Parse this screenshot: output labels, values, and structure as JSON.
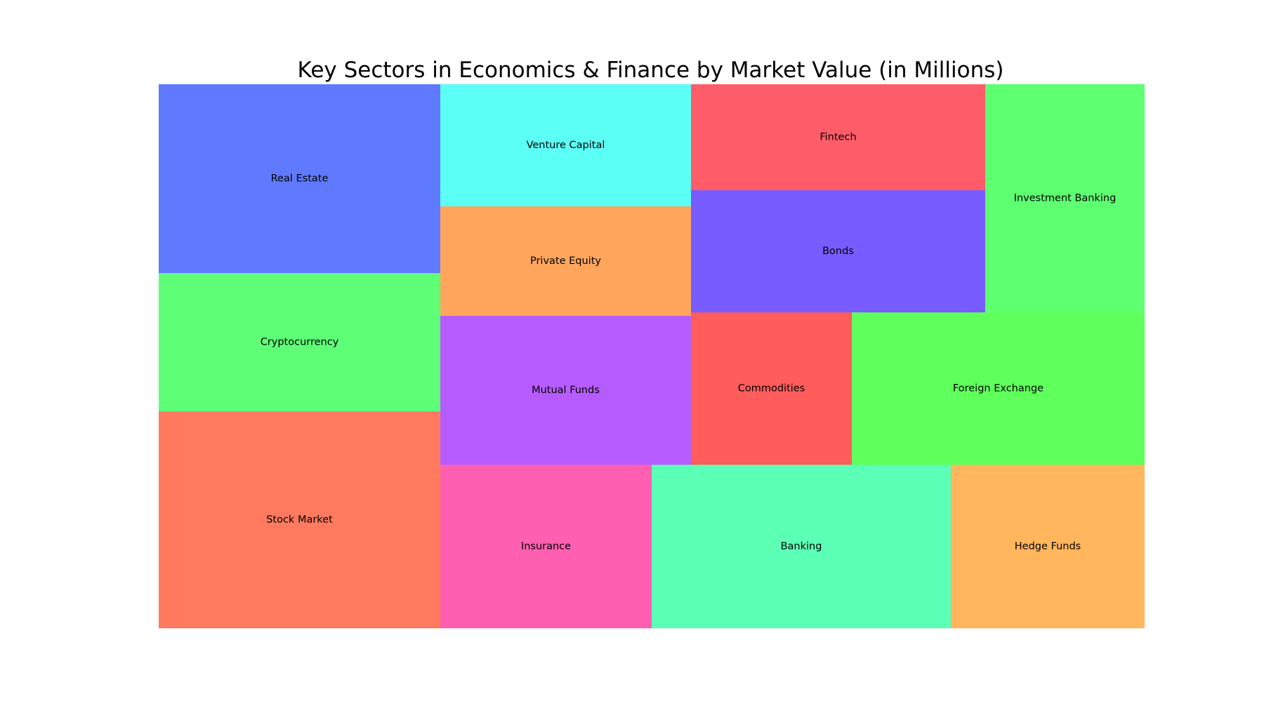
{
  "chart_data": {
    "type": "treemap",
    "title": "Key Sectors in Economics & Finance by Market Value (in Millions)",
    "items": [
      {
        "label": "Real Estate",
        "color": "#5F7AFF"
      },
      {
        "label": "Cryptocurrency",
        "color": "#5EFF77"
      },
      {
        "label": "Stock Market",
        "color": "#FF7A5F"
      },
      {
        "label": "Venture Capital",
        "color": "#5CFFF6"
      },
      {
        "label": "Private Equity",
        "color": "#FFA65C"
      },
      {
        "label": "Mutual Funds",
        "color": "#B65CFF"
      },
      {
        "label": "Insurance",
        "color": "#FF5FB1"
      },
      {
        "label": "Banking",
        "color": "#5CFFB6"
      },
      {
        "label": "Hedge Funds",
        "color": "#FFB65C"
      },
      {
        "label": "Fintech",
        "color": "#FF5C6A"
      },
      {
        "label": "Bonds",
        "color": "#785CFF"
      },
      {
        "label": "Investment Banking",
        "color": "#5EFF70"
      },
      {
        "label": "Commodities",
        "color": "#FF5C5C"
      },
      {
        "label": "Foreign Exchange",
        "color": "#5FFF5C"
      }
    ]
  }
}
